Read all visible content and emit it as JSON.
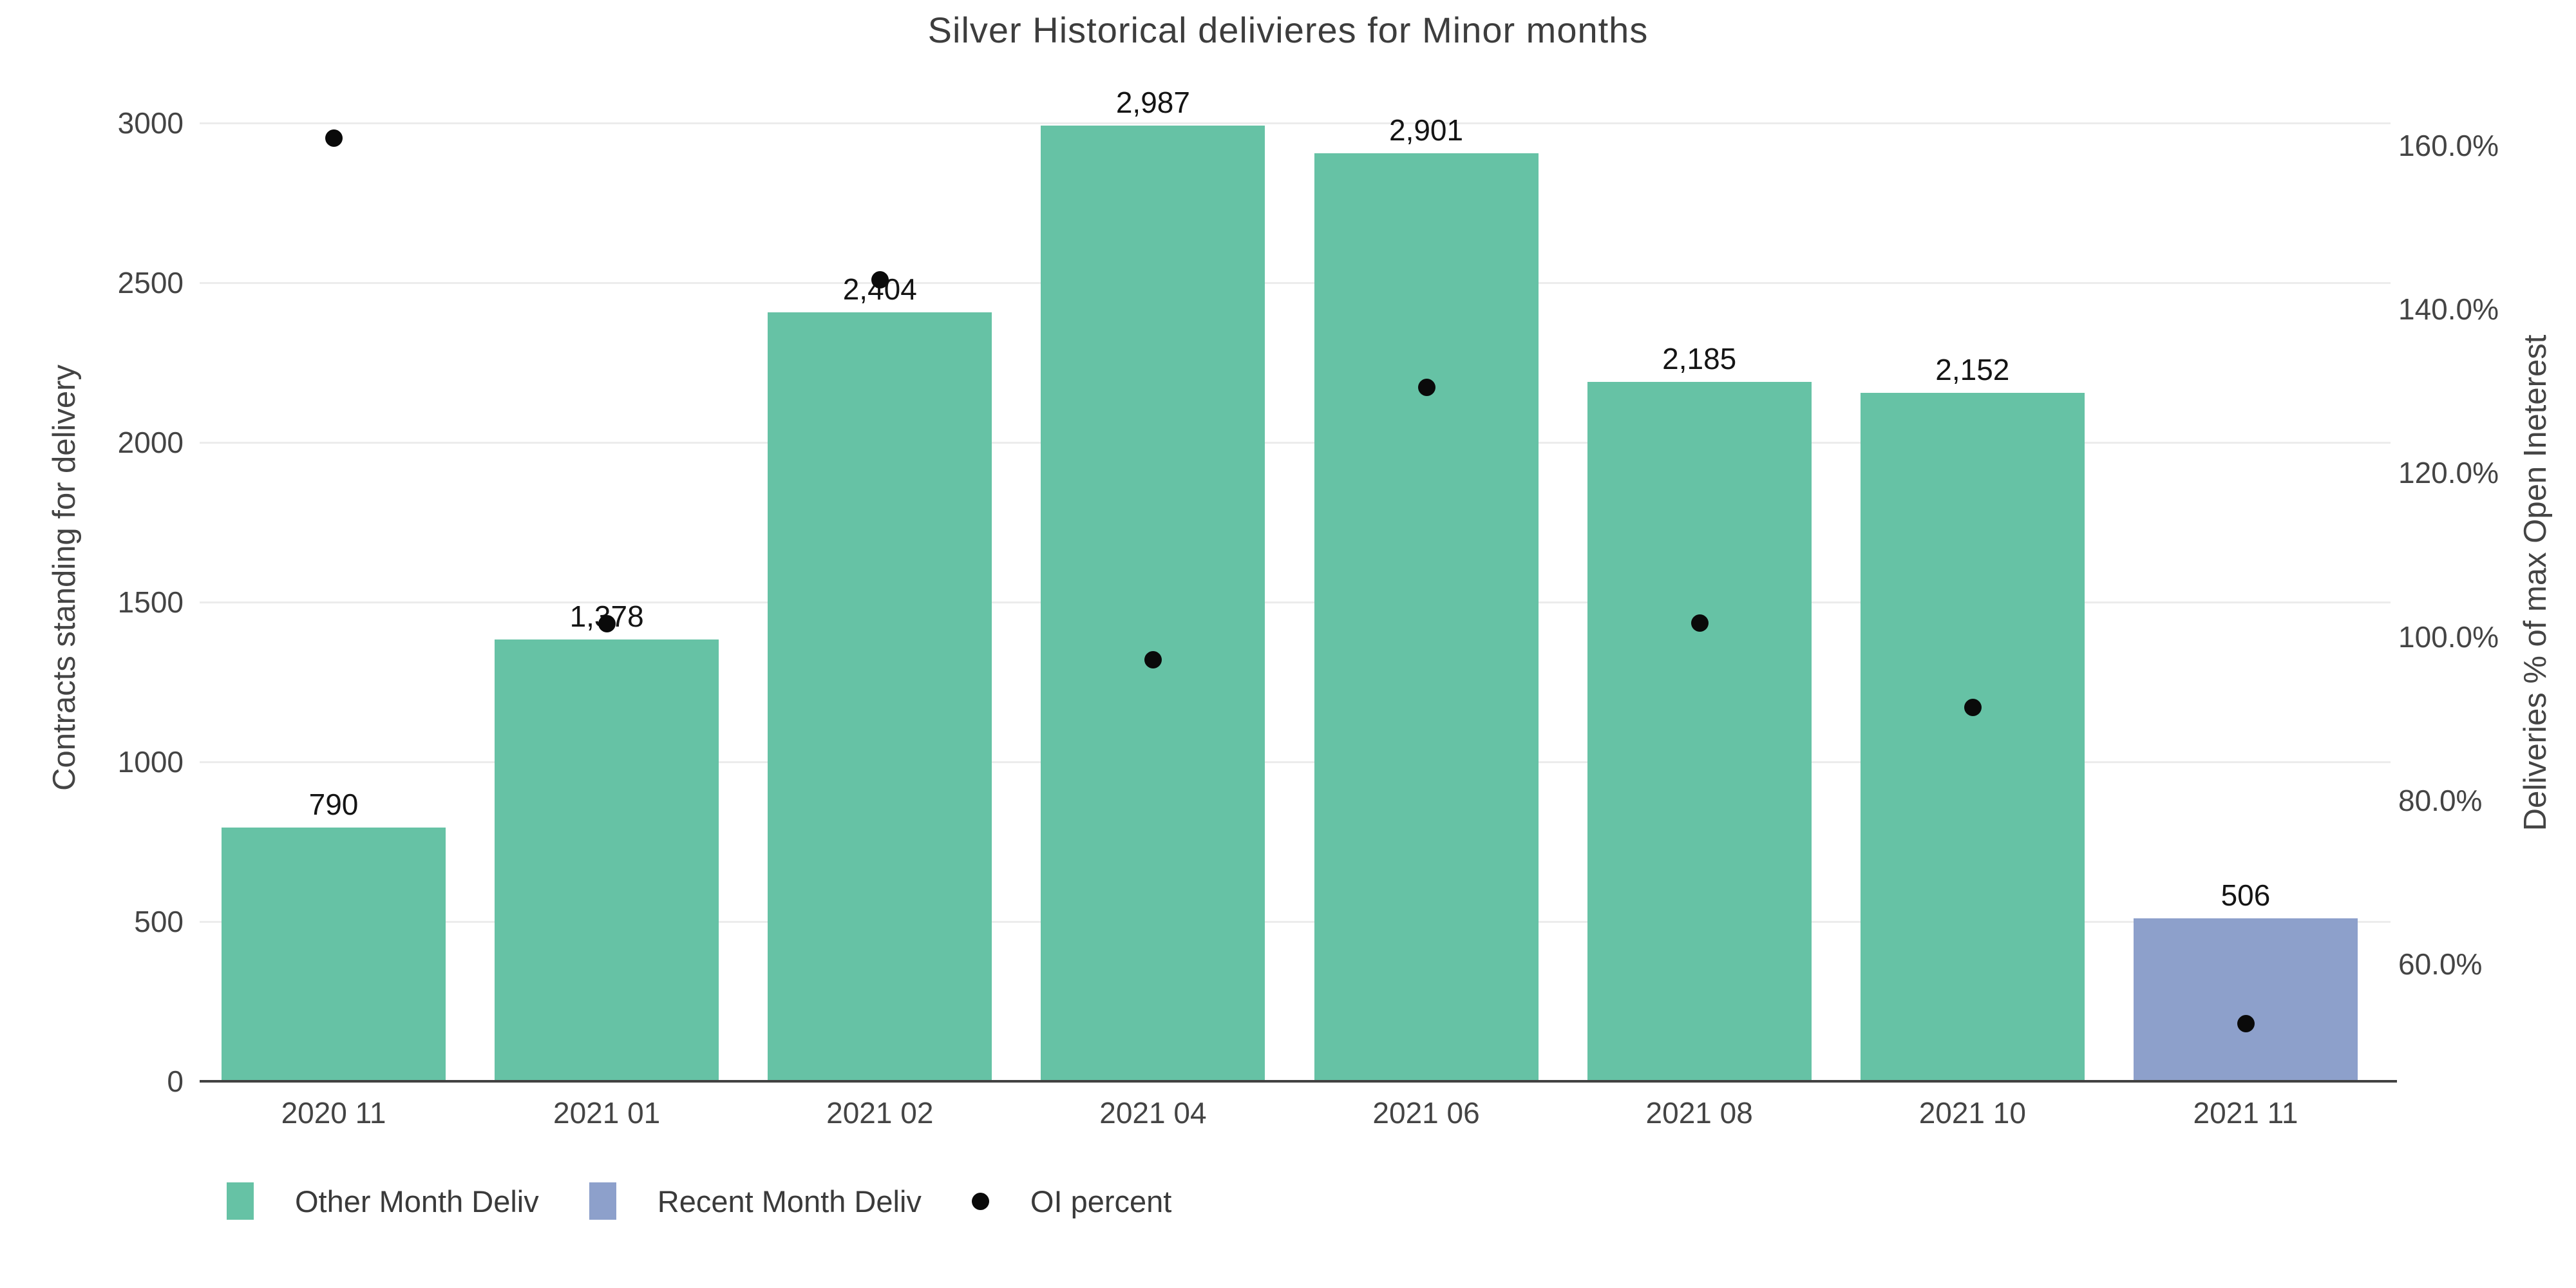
{
  "title": "Silver Historical delivieres for Minor months",
  "colors": {
    "bar_other": "#66C2A5",
    "bar_recent": "#8DA0CB",
    "dot": "#0a0a0a",
    "grid": "#ececec",
    "axis_line": "#424242",
    "tick_text": "#444444",
    "bar_label_text": "#141414"
  },
  "left_axis": {
    "title": "Contracts standing for delivery",
    "ticks": [
      0,
      500,
      1000,
      1500,
      2000,
      2500,
      3000
    ],
    "range": [
      0,
      3153
    ]
  },
  "right_axis": {
    "title": "Deliveries % of max Open Ineterest",
    "ticks": [
      {
        "value": 60,
        "label": "60.0%"
      },
      {
        "value": 80,
        "label": "80.0%"
      },
      {
        "value": 100,
        "label": "100.0%"
      },
      {
        "value": 120,
        "label": "120.0%"
      },
      {
        "value": 140,
        "label": "140.0%"
      },
      {
        "value": 160,
        "label": "160.0%"
      }
    ],
    "range": [
      45.7,
      168.7
    ]
  },
  "legend": [
    {
      "label": "Other Month Deliv",
      "swatch": "bar",
      "color": "#66C2A5"
    },
    {
      "label": "Recent Month Deliv",
      "swatch": "bar",
      "color": "#8DA0CB"
    },
    {
      "label": "OI percent",
      "swatch": "dot",
      "color": "#0a0a0a"
    }
  ],
  "chart_data": {
    "type": "bar",
    "title": "Silver Historical delivieres for Minor months",
    "xlabel": "",
    "ylabel": "Contracts standing for delivery",
    "y2label": "Deliveries % of max Open Ineterest",
    "grid": true,
    "legend_position": "bottom-left",
    "categories": [
      "2020 11",
      "2021 01",
      "2021 02",
      "2021 04",
      "2021 06",
      "2021 08",
      "2021 10",
      "2021 11"
    ],
    "series": [
      {
        "name": "Other Month Deliv",
        "type": "bar",
        "axis": "left",
        "values": [
          790,
          1378,
          2404,
          2987,
          2901,
          2185,
          2152,
          null
        ]
      },
      {
        "name": "Recent Month Deliv",
        "type": "bar",
        "axis": "left",
        "values": [
          null,
          null,
          null,
          null,
          null,
          null,
          null,
          506
        ]
      },
      {
        "name": "OI percent",
        "type": "scatter",
        "axis": "right",
        "values": [
          160.9,
          101.6,
          143.6,
          97.2,
          130.5,
          101.7,
          91.4,
          52.8
        ]
      }
    ],
    "bar_labels": [
      "790",
      "1,378",
      "2,404",
      "2,987",
      "2,901",
      "2,185",
      "2,152",
      "506"
    ],
    "left_ylim": [
      0,
      3153
    ],
    "right_ylim": [
      45.7,
      168.7
    ]
  }
}
